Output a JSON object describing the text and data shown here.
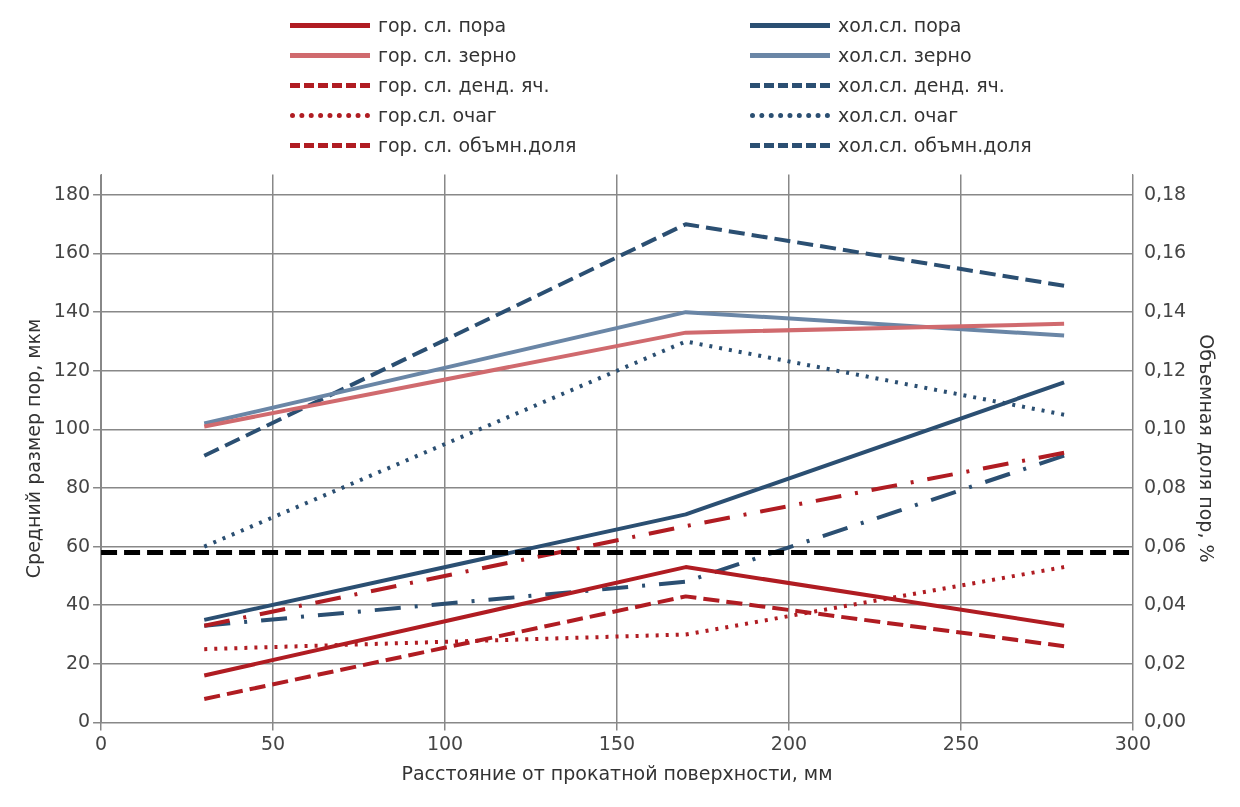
{
  "chart_data": {
    "type": "line",
    "xlabel": "Расстояние от прокатной поверхности, мм",
    "ylabel": "Средний размер пор, мкм",
    "y2label": "Объемная доля пор, %",
    "x": [
      30,
      170,
      280
    ],
    "series": [
      {
        "name": "гор. сл. пора",
        "color": "#b01c22",
        "values": [
          16,
          53,
          33
        ],
        "line_style": "solid"
      },
      {
        "name": "гор. сл. зерно",
        "color": "#d06a6e",
        "values": [
          101,
          133,
          136
        ],
        "line_style": "solid"
      },
      {
        "name": "гор. сл. денд. яч.",
        "color": "#b01c22",
        "values": [
          33,
          67,
          92
        ],
        "line_style": "dash-dot"
      },
      {
        "name": "гор.сл. очаг",
        "color": "#b01c22",
        "values": [
          25,
          30,
          53
        ],
        "line_style": "dotted"
      },
      {
        "name": "гор. сл.  объмн.доля",
        "color": "#b01c22",
        "values": [
          0.008,
          0.043,
          0.026
        ],
        "line_style": "dashed",
        "axis": "y2"
      },
      {
        "name": "хол.сл. пора",
        "color": "#2b4f72",
        "values": [
          35,
          71,
          116
        ],
        "line_style": "solid"
      },
      {
        "name": "хол.сл. зерно",
        "color": "#6a86a6",
        "values": [
          102,
          140,
          132
        ],
        "line_style": "solid"
      },
      {
        "name": "хол.сл. денд. яч.",
        "color": "#2b4f72",
        "values": [
          33,
          48,
          91
        ],
        "line_style": "dash-dot"
      },
      {
        "name": "хол.сл. очаг",
        "color": "#2b4f72",
        "values": [
          60,
          130,
          105
        ],
        "line_style": "dotted"
      },
      {
        "name": "хол.сл. объмн.доля",
        "color": "#2b4f72",
        "values": [
          0.091,
          0.17,
          0.149
        ],
        "line_style": "dashed",
        "axis": "y2"
      }
    ],
    "xlim": [
      0,
      300
    ],
    "xticks": [
      0,
      50,
      100,
      150,
      200,
      250,
      300
    ],
    "ylim": [
      0,
      187
    ],
    "yticks": [
      0,
      20,
      40,
      60,
      80,
      100,
      120,
      140,
      160,
      180
    ],
    "y2lim": [
      0,
      0.187
    ],
    "y2ticks": [
      {
        "value": 0,
        "label": "0,00"
      },
      {
        "value": 0.02,
        "label": "0,02"
      },
      {
        "value": 0.04,
        "label": "0,04"
      },
      {
        "value": 0.06,
        "label": "0,06"
      },
      {
        "value": 0.08,
        "label": "0,08"
      },
      {
        "value": 0.1,
        "label": "0,10"
      },
      {
        "value": 0.12,
        "label": "0,12"
      },
      {
        "value": 0.14,
        "label": "0,14"
      },
      {
        "value": 0.16,
        "label": "0,16"
      },
      {
        "value": 0.18,
        "label": "0,18"
      }
    ],
    "ref_lines": [
      {
        "axis": "y",
        "value": 58,
        "color": "#000000",
        "line_style": "dashed"
      }
    ],
    "grid": true,
    "legend": "top",
    "marker": "none"
  }
}
